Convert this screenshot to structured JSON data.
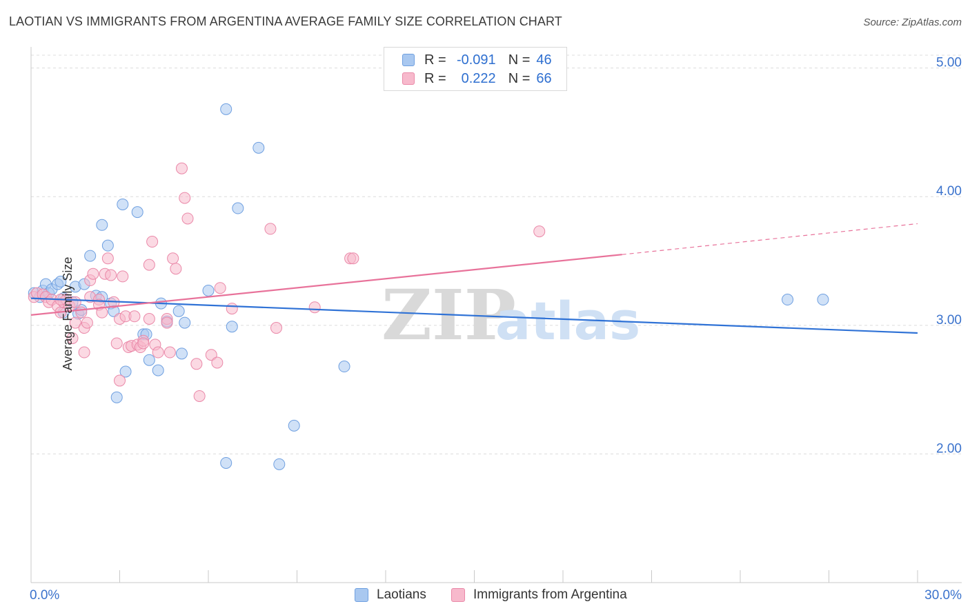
{
  "title": "LAOTIAN VS IMMIGRANTS FROM ARGENTINA AVERAGE FAMILY SIZE CORRELATION CHART",
  "source": "Source: ZipAtlas.com",
  "watermark": {
    "zip": "ZIP",
    "atlas": "atlas"
  },
  "stats": [
    {
      "r_label": "R =",
      "r_value": "-0.091",
      "n_label": "N =",
      "n_value": "46",
      "color": "#a9c8f0",
      "border": "#6e9fe0"
    },
    {
      "r_label": "R =",
      "r_value": "0.222",
      "n_label": "N =",
      "n_value": "66",
      "color": "#f7b9cc",
      "border": "#ea88a8"
    }
  ],
  "chart_data": {
    "type": "scatter",
    "xlabel": "",
    "ylabel": "Average Family Size",
    "xlim": [
      0,
      30
    ],
    "ylim": [
      1.0,
      5.1
    ],
    "x_tick_labels": {
      "0": "0.0%",
      "30": "30.0%"
    },
    "y_ticks": [
      2.0,
      3.0,
      4.0,
      5.0
    ],
    "y_tick_labels": [
      "2.00",
      "3.00",
      "4.00",
      "5.00"
    ],
    "grid": "horizontal dashed",
    "legend_position": "bottom-center",
    "series": [
      {
        "name": "Laotians",
        "color": "#a9c8f0",
        "stroke": "#6e9fe0",
        "trend_color": "#2f72d6",
        "trend": {
          "x": [
            0,
            30
          ],
          "y": [
            3.21,
            2.94
          ]
        },
        "points": [
          [
            0.1,
            3.25
          ],
          [
            0.3,
            3.22
          ],
          [
            0.4,
            3.27
          ],
          [
            0.5,
            3.32
          ],
          [
            0.6,
            3.25
          ],
          [
            0.7,
            3.28
          ],
          [
            0.9,
            3.32
          ],
          [
            1.0,
            3.34
          ],
          [
            1.1,
            3.21
          ],
          [
            1.1,
            3.1
          ],
          [
            1.4,
            3.18
          ],
          [
            1.5,
            3.3
          ],
          [
            1.6,
            3.09
          ],
          [
            1.7,
            3.12
          ],
          [
            1.8,
            3.32
          ],
          [
            2.0,
            3.54
          ],
          [
            2.2,
            3.23
          ],
          [
            2.4,
            3.22
          ],
          [
            2.4,
            3.78
          ],
          [
            2.6,
            3.62
          ],
          [
            2.7,
            3.17
          ],
          [
            2.8,
            3.11
          ],
          [
            2.9,
            2.44
          ],
          [
            3.1,
            3.94
          ],
          [
            3.2,
            2.64
          ],
          [
            3.6,
            3.88
          ],
          [
            3.8,
            2.93
          ],
          [
            3.9,
            2.93
          ],
          [
            4.0,
            2.73
          ],
          [
            4.3,
            2.65
          ],
          [
            4.4,
            3.17
          ],
          [
            4.6,
            3.03
          ],
          [
            5.0,
            3.11
          ],
          [
            5.1,
            2.78
          ],
          [
            5.2,
            3.02
          ],
          [
            6.0,
            3.27
          ],
          [
            6.6,
            4.68
          ],
          [
            6.6,
            1.93
          ],
          [
            6.8,
            2.99
          ],
          [
            7.0,
            3.91
          ],
          [
            7.7,
            4.38
          ],
          [
            8.4,
            1.92
          ],
          [
            8.9,
            2.22
          ],
          [
            10.6,
            2.68
          ],
          [
            25.6,
            3.2
          ],
          [
            26.8,
            3.2
          ]
        ]
      },
      {
        "name": "Immigrants from Argentina",
        "color": "#f7b9cc",
        "stroke": "#ea88a8",
        "trend_color": "#e8729a",
        "trend": {
          "x": [
            0,
            20
          ],
          "y": [
            3.08,
            3.55
          ]
        },
        "trend_dashed": {
          "x": [
            20,
            30
          ],
          "y": [
            3.55,
            3.79
          ]
        },
        "points": [
          [
            0.1,
            3.22
          ],
          [
            0.2,
            3.25
          ],
          [
            0.4,
            3.24
          ],
          [
            0.5,
            3.22
          ],
          [
            0.6,
            3.18
          ],
          [
            0.7,
            3.2
          ],
          [
            0.9,
            3.15
          ],
          [
            1.0,
            3.1
          ],
          [
            1.1,
            3.18
          ],
          [
            1.2,
            3.2
          ],
          [
            1.3,
            3.15
          ],
          [
            1.4,
            2.9
          ],
          [
            1.5,
            3.02
          ],
          [
            1.5,
            3.18
          ],
          [
            1.7,
            3.1
          ],
          [
            1.8,
            2.98
          ],
          [
            1.8,
            2.79
          ],
          [
            1.9,
            3.02
          ],
          [
            2.0,
            3.35
          ],
          [
            2.0,
            3.22
          ],
          [
            2.1,
            3.4
          ],
          [
            2.3,
            3.2
          ],
          [
            2.3,
            3.16
          ],
          [
            2.4,
            3.1
          ],
          [
            2.5,
            3.4
          ],
          [
            2.6,
            3.52
          ],
          [
            2.7,
            3.39
          ],
          [
            2.8,
            3.18
          ],
          [
            2.9,
            2.86
          ],
          [
            3.0,
            3.05
          ],
          [
            3.1,
            3.38
          ],
          [
            3.2,
            3.07
          ],
          [
            3.3,
            2.83
          ],
          [
            3.4,
            2.84
          ],
          [
            3.5,
            3.07
          ],
          [
            3.6,
            2.85
          ],
          [
            3.7,
            2.83
          ],
          [
            3.8,
            2.88
          ],
          [
            4.0,
            3.47
          ],
          [
            4.0,
            3.05
          ],
          [
            4.1,
            3.65
          ],
          [
            4.2,
            2.85
          ],
          [
            4.3,
            2.79
          ],
          [
            4.6,
            3.05
          ],
          [
            4.6,
            3.02
          ],
          [
            4.7,
            2.79
          ],
          [
            4.8,
            3.52
          ],
          [
            4.9,
            3.44
          ],
          [
            5.1,
            4.22
          ],
          [
            5.2,
            3.99
          ],
          [
            5.3,
            3.83
          ],
          [
            5.6,
            2.7
          ],
          [
            5.7,
            2.45
          ],
          [
            6.1,
            2.77
          ],
          [
            6.3,
            2.71
          ],
          [
            6.4,
            3.29
          ],
          [
            6.8,
            3.13
          ],
          [
            8.1,
            3.75
          ],
          [
            8.3,
            2.98
          ],
          [
            9.6,
            3.14
          ],
          [
            10.8,
            3.52
          ],
          [
            10.9,
            3.52
          ],
          [
            17.2,
            3.73
          ],
          [
            3.0,
            2.57
          ],
          [
            3.8,
            2.86
          ],
          [
            1.0,
            3.2
          ]
        ]
      }
    ]
  }
}
